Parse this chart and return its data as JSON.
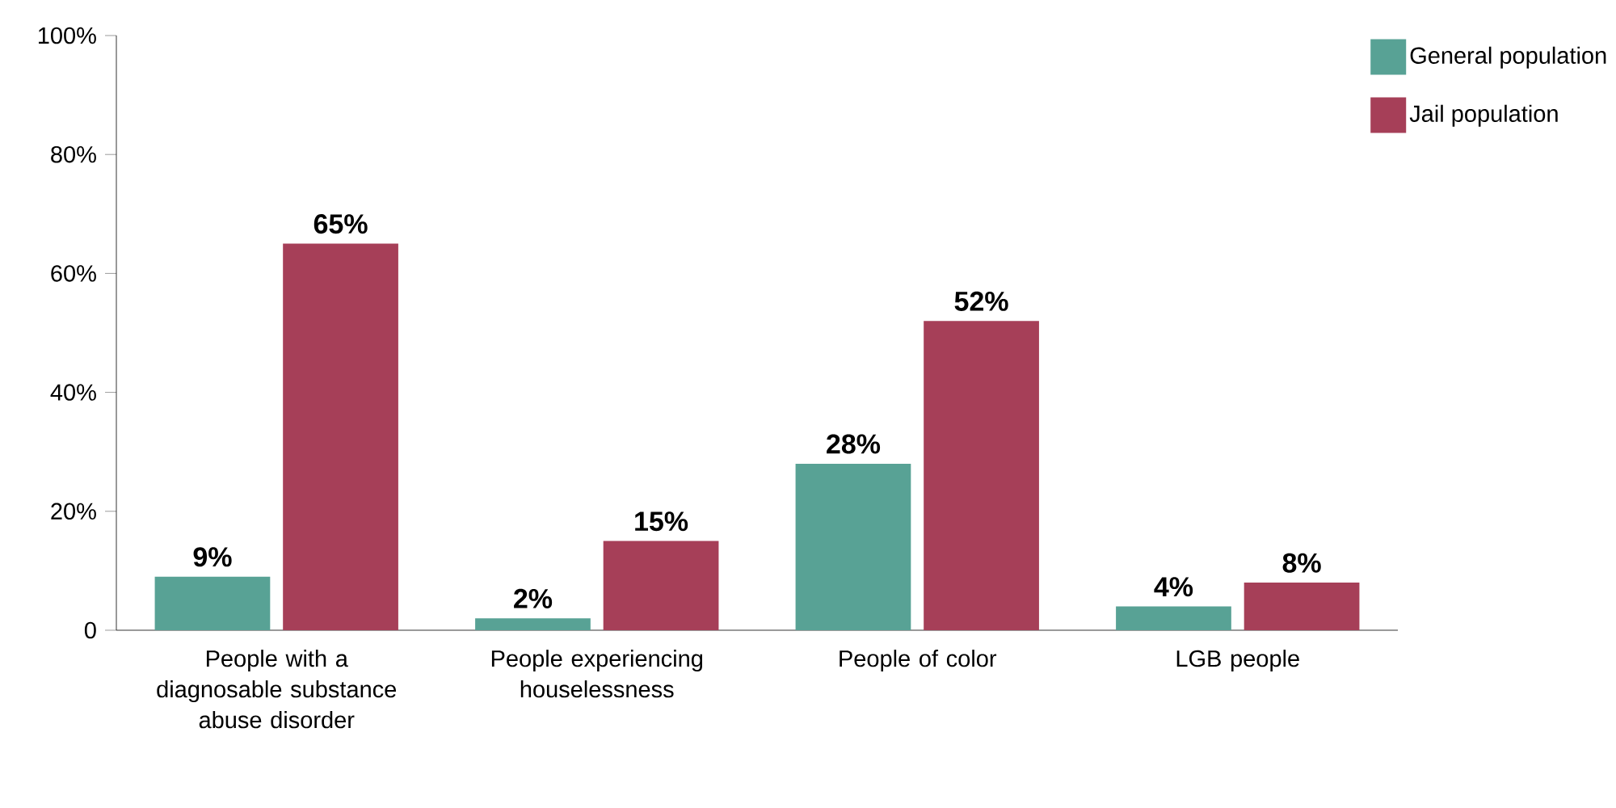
{
  "chart_data": {
    "type": "bar",
    "categories": [
      "People with a diagnosable substance abuse disorder",
      "People experiencing houselessness",
      "People of color",
      "LGB people"
    ],
    "series": [
      {
        "name": "General population",
        "color": "#58a295",
        "values": [
          9,
          2,
          28,
          4
        ],
        "value_labels": [
          "9%",
          "2%",
          "28%",
          "4%"
        ]
      },
      {
        "name": "Jail population",
        "color": "#a63f58",
        "values": [
          65,
          15,
          52,
          8
        ],
        "value_labels": [
          "65%",
          "15%",
          "52%",
          "8%"
        ]
      }
    ],
    "ylim": [
      0,
      100
    ],
    "yticks": [
      0,
      {
        "value": 20,
        "label": "20%"
      },
      {
        "value": 40,
        "label": "40%"
      },
      {
        "value": 60,
        "label": "60%"
      },
      {
        "value": 80,
        "label": "80%"
      },
      {
        "value": 100,
        "label": "100%"
      }
    ],
    "grid": false,
    "legend": "top right"
  }
}
